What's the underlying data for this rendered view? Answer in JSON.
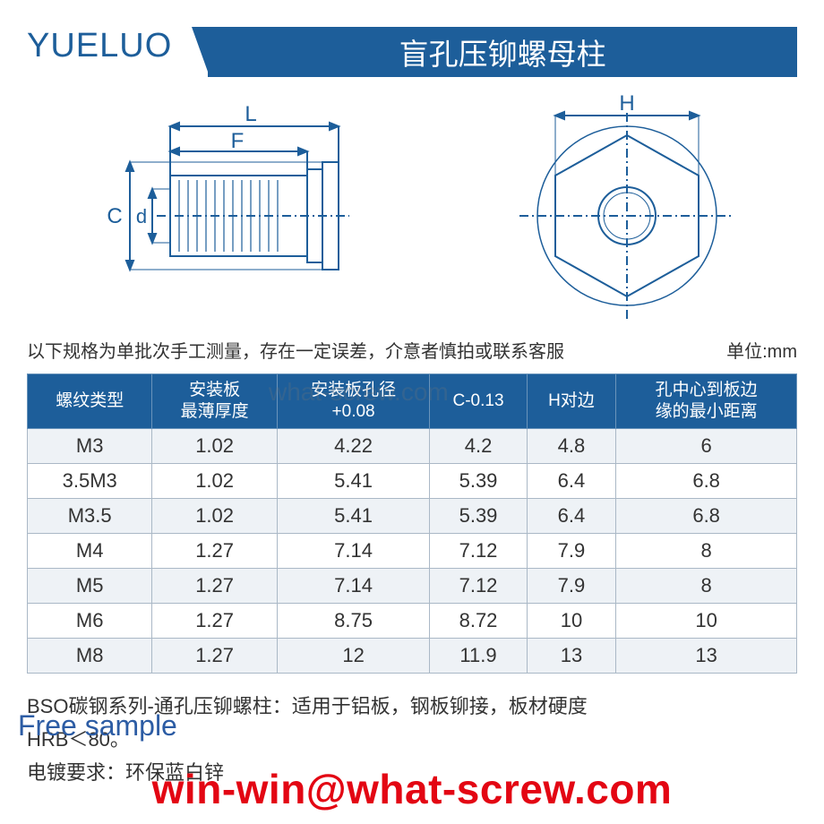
{
  "header": {
    "logo_text": "YUELUO",
    "banner_text": "盲孔压铆螺母柱",
    "logo_color": "#1d5e9a",
    "banner_bg": "#1d5e9a",
    "banner_fg": "#ffffff"
  },
  "diagram": {
    "stroke": "#1d5e9a",
    "labels": {
      "L": "L",
      "F": "F",
      "C": "C",
      "d": "d",
      "H": "H"
    }
  },
  "notes": {
    "left": "以下规格为单批次手工测量，存在一定误差，介意者慎拍或联系客服",
    "right": "单位:mm"
  },
  "table": {
    "header_bg": "#1d5e9a",
    "header_fg": "#ffffff",
    "row_alt_bg": "#eef2f6",
    "border_color": "#aab8c6",
    "columns": [
      "螺纹类型",
      "安装板\n最薄厚度",
      "安装板孔径\n+0.08",
      "C-0.13",
      "H对边",
      "孔中心到板边\n缘的最小距离"
    ],
    "rows": [
      [
        "M3",
        "1.02",
        "4.22",
        "4.2",
        "4.8",
        "6"
      ],
      [
        "3.5M3",
        "1.02",
        "5.41",
        "5.39",
        "6.4",
        "6.8"
      ],
      [
        "M3.5",
        "1.02",
        "5.41",
        "5.39",
        "6.4",
        "6.8"
      ],
      [
        "M4",
        "1.27",
        "7.14",
        "7.12",
        "7.9",
        "8"
      ],
      [
        "M5",
        "1.27",
        "7.14",
        "7.12",
        "7.9",
        "8"
      ],
      [
        "M6",
        "1.27",
        "8.75",
        "8.72",
        "10",
        "10"
      ],
      [
        "M8",
        "1.27",
        "12",
        "11.9",
        "13",
        "13"
      ]
    ]
  },
  "description": {
    "line1": "BSO碳钢系列-通孔压铆螺柱：适用于铝板，钢板铆接，板材硬度",
    "line2": "HRB＜80。",
    "line3": "电镀要求：环保蓝白锌"
  },
  "overlay": {
    "free_sample": "Free sample",
    "email": "win-win@what-screw.com",
    "email_color": "#e30613",
    "sample_color": "#2c5ca4",
    "watermark": "what-screw.com"
  }
}
